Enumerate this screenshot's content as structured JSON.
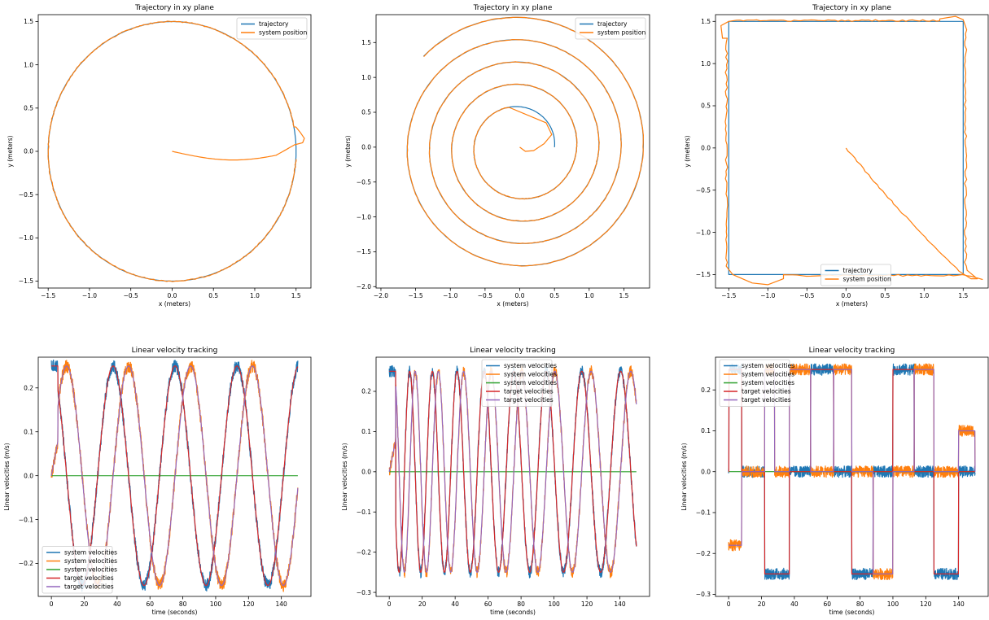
{
  "colors": {
    "blue": "#1f77b4",
    "orange": "#ff7f0e",
    "green": "#2ca02c",
    "red": "#d62728",
    "purple": "#9467bd"
  },
  "chart_data": [
    {
      "type": "line",
      "title": "Trajectory in xy plane",
      "xlabel": "x (meters)",
      "ylabel": "y (meters)",
      "xlim": [
        -1.62,
        1.68
      ],
      "ylim": [
        -1.58,
        1.58
      ],
      "xticks": [
        -1.5,
        -1.0,
        -0.5,
        0.0,
        0.5,
        1.0,
        1.5
      ],
      "xtick_labels": [
        "−1.5",
        "−1.0",
        "−0.5",
        "0.0",
        "0.5",
        "1.0",
        "1.5"
      ],
      "yticks": [
        -1.5,
        -1.0,
        -0.5,
        0.0,
        0.5,
        1.0,
        1.5
      ],
      "ytick_labels": [
        "−1.5",
        "−1.0",
        "−0.5",
        "0.0",
        "0.5",
        "1.0",
        "1.5"
      ],
      "legend_position": "top-right",
      "pattern": "circle",
      "series": [
        {
          "name": "trajectory",
          "color": "blue",
          "description": "circle of radius 1.5 centred at origin"
        },
        {
          "name": "system position",
          "color": "orange",
          "start": [
            0.0,
            0.0
          ],
          "overshoot_max_x": 1.6
        }
      ]
    },
    {
      "type": "line",
      "title": "Trajectory in xy plane",
      "xlabel": "x (meters)",
      "ylabel": "y (meters)",
      "xlim": [
        -2.07,
        1.87
      ],
      "ylim": [
        -2.02,
        1.9
      ],
      "xticks": [
        -2.0,
        -1.5,
        -1.0,
        -0.5,
        0.0,
        0.5,
        1.0,
        1.5
      ],
      "xtick_labels": [
        "−2.0",
        "−1.5",
        "−1.0",
        "−0.5",
        "0.0",
        "0.5",
        "1.0",
        "1.5"
      ],
      "yticks": [
        -2.0,
        -1.5,
        -1.0,
        -0.5,
        0.0,
        0.5,
        1.0,
        1.5
      ],
      "ytick_labels": [
        "−2.0",
        "−1.5",
        "−1.0",
        "−0.5",
        "0.0",
        "0.5",
        "1.0",
        "1.5"
      ],
      "legend_position": "top-right",
      "pattern": "spiral",
      "series": [
        {
          "name": "trajectory",
          "color": "blue",
          "description": "outward spiral from (0.5, 0) to (-0.15, -1.9)"
        },
        {
          "name": "system position",
          "color": "orange",
          "start": [
            0.0,
            0.0
          ]
        }
      ]
    },
    {
      "type": "line",
      "title": "Trajectory in xy plane",
      "xlabel": "x (meters)",
      "ylabel": "y (meters)",
      "xlim": [
        -1.67,
        1.82
      ],
      "ylim": [
        -1.66,
        1.58
      ],
      "xticks": [
        -1.5,
        -1.0,
        -0.5,
        0.0,
        0.5,
        1.0,
        1.5
      ],
      "xtick_labels": [
        "−1.5",
        "−1.0",
        "−0.5",
        "0.0",
        "0.5",
        "1.0",
        "1.5"
      ],
      "yticks": [
        -1.5,
        -1.0,
        -0.5,
        0.0,
        0.5,
        1.0,
        1.5
      ],
      "ytick_labels": [
        "−1.5",
        "−1.0",
        "−0.5",
        "0.0",
        "0.5",
        "1.0",
        "1.5"
      ],
      "legend_position": "bottom-center",
      "pattern": "square",
      "series": [
        {
          "name": "trajectory",
          "color": "blue",
          "description": "square with corners at (±1.5, ±1.5)"
        },
        {
          "name": "system position",
          "color": "orange",
          "start": [
            0.0,
            0.0
          ]
        }
      ]
    },
    {
      "type": "line",
      "title": "Linear velocity tracking",
      "xlabel": "time (seconds)",
      "ylabel": "Linear velocities (m/s)",
      "xlim": [
        -8,
        158
      ],
      "ylim": [
        -0.275,
        0.27
      ],
      "xticks": [
        0,
        20,
        40,
        60,
        80,
        100,
        120,
        140
      ],
      "xtick_labels": [
        "0",
        "20",
        "40",
        "60",
        "80",
        "100",
        "120",
        "140"
      ],
      "yticks": [
        -0.2,
        -0.1,
        0.0,
        0.1,
        0.2
      ],
      "ytick_labels": [
        "−0.2",
        "−0.1",
        "0.0",
        "0.1",
        "0.2"
      ],
      "legend_position": "bottom-left",
      "pattern": "circle",
      "amplitude": 0.25,
      "period_s": 37.7,
      "duration_s": 150,
      "series": [
        {
          "name": "system velocities",
          "color": "blue"
        },
        {
          "name": "system velocities",
          "color": "orange"
        },
        {
          "name": "system velocities",
          "color": "green"
        },
        {
          "name": "target velocities",
          "color": "red"
        },
        {
          "name": "target velocities",
          "color": "purple"
        }
      ]
    },
    {
      "type": "line",
      "title": "Linear velocity tracking",
      "xlabel": "time (seconds)",
      "ylabel": "Linear velocities (m/s)",
      "xlim": [
        -8,
        158
      ],
      "ylim": [
        -0.31,
        0.285
      ],
      "xticks": [
        0,
        20,
        40,
        60,
        80,
        100,
        120,
        140
      ],
      "xtick_labels": [
        "0",
        "20",
        "40",
        "60",
        "80",
        "100",
        "120",
        "140"
      ],
      "yticks": [
        -0.3,
        -0.2,
        -0.1,
        0.0,
        0.1,
        0.2
      ],
      "ytick_labels": [
        "−0.3",
        "−0.2",
        "−0.1",
        "0.0",
        "0.1",
        "0.2"
      ],
      "legend_position": "top-center",
      "pattern": "spiral",
      "amplitude": 0.25,
      "period_start_s": 12,
      "period_end_s": 25.5,
      "duration_s": 150,
      "series": [
        {
          "name": "system velocities",
          "color": "blue"
        },
        {
          "name": "system velocities",
          "color": "orange"
        },
        {
          "name": "system velocities",
          "color": "green"
        },
        {
          "name": "target velocities",
          "color": "red"
        },
        {
          "name": "target velocities",
          "color": "purple"
        }
      ]
    },
    {
      "type": "line",
      "title": "Linear velocity tracking",
      "xlabel": "time (seconds)",
      "ylabel": "Linear velocities (m/s)",
      "xlim": [
        -8,
        158
      ],
      "ylim": [
        -0.305,
        0.28
      ],
      "xticks": [
        0,
        20,
        40,
        60,
        80,
        100,
        120,
        140
      ],
      "xtick_labels": [
        "0",
        "20",
        "40",
        "60",
        "80",
        "100",
        "120",
        "140"
      ],
      "yticks": [
        -0.3,
        -0.2,
        -0.1,
        0.0,
        0.1,
        0.2
      ],
      "ytick_labels": [
        "−0.3",
        "−0.2",
        "−0.1",
        "0.0",
        "0.1",
        "0.2"
      ],
      "legend_position": "top-left",
      "pattern": "square",
      "amplitude": 0.25,
      "duration_s": 150,
      "series": [
        {
          "name": "system velocities",
          "color": "blue"
        },
        {
          "name": "system velocities",
          "color": "orange"
        },
        {
          "name": "system velocities",
          "color": "green"
        },
        {
          "name": "target velocities",
          "color": "red"
        },
        {
          "name": "target velocities",
          "color": "purple"
        }
      ]
    }
  ]
}
